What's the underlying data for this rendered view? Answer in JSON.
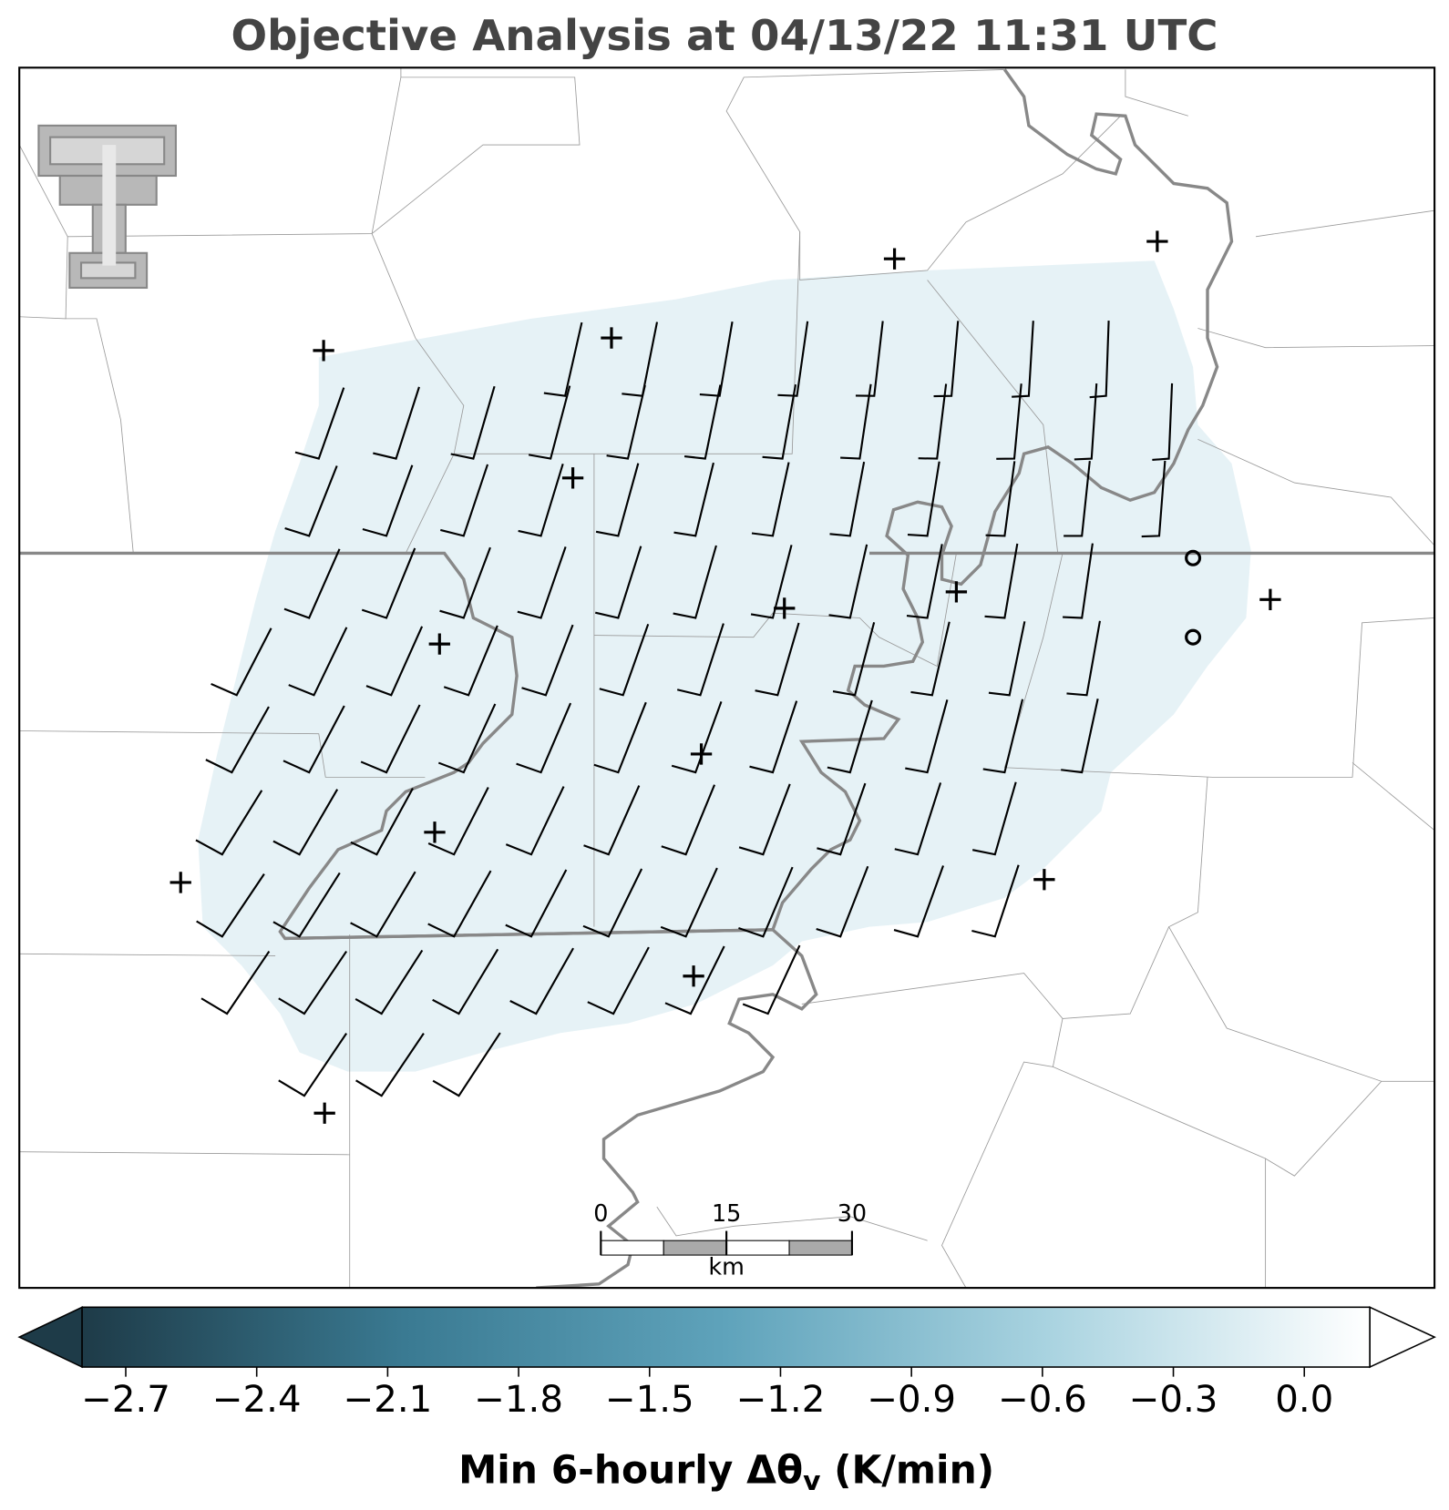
{
  "header": {
    "title": "Objective Analysis at 04/13/22 11:31 UTC"
  },
  "colorbar": {
    "clim": [
      -2.8,
      0.15
    ],
    "colors": [
      "#1e3b48",
      "#3a7a92",
      "#5fa3bb",
      "#a9d3e0",
      "#ffffff"
    ],
    "extend": "both",
    "ticks": [
      {
        "value": -2.7,
        "label": "−2.7"
      },
      {
        "value": -2.4,
        "label": "−2.4"
      },
      {
        "value": -2.1,
        "label": "−2.1"
      },
      {
        "value": -1.8,
        "label": "−1.8"
      },
      {
        "value": -1.5,
        "label": "−1.5"
      },
      {
        "value": -1.2,
        "label": "−1.2"
      },
      {
        "value": -0.9,
        "label": "−0.9"
      },
      {
        "value": -0.6,
        "label": "−0.6"
      },
      {
        "value": -0.3,
        "label": "−0.3"
      },
      {
        "value": 0,
        "label": "0.0"
      }
    ],
    "label": {
      "main": "Min 6-hourly Δθ",
      "subscript": "v",
      "units": " (K/min)"
    }
  },
  "scale_bar": {
    "labels": [
      "0",
      "15",
      "30"
    ],
    "unit": "km"
  }
}
